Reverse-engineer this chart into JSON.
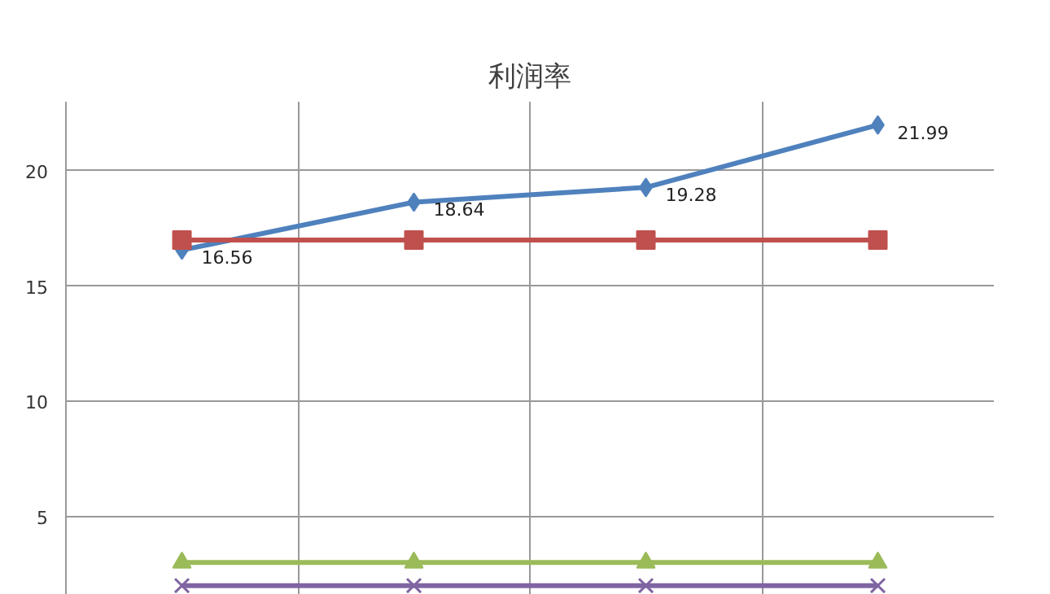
{
  "chart_data": {
    "type": "line",
    "title": "利润率",
    "categories": [
      null,
      null,
      null,
      null
    ],
    "series": [
      {
        "color": "#4f81bd",
        "marker": "diamond",
        "values": [
          16.56,
          18.64,
          19.28,
          21.99
        ],
        "value_labels": [
          "16.56",
          "18.64",
          "19.28",
          "21.99"
        ]
      },
      {
        "color": "#c0504d",
        "marker": "square",
        "values": [
          17,
          17,
          17,
          17
        ]
      },
      {
        "color": "#9bbb59",
        "marker": "triangle",
        "values": [
          3,
          3,
          3,
          3
        ]
      },
      {
        "color": "#8064a2",
        "marker": "cross",
        "values": [
          2,
          2,
          2,
          2
        ]
      }
    ],
    "ylim": [
      1.6,
      23
    ],
    "yticks": [
      5,
      10,
      15,
      20
    ],
    "grid": true,
    "tick_labels": "y"
  }
}
